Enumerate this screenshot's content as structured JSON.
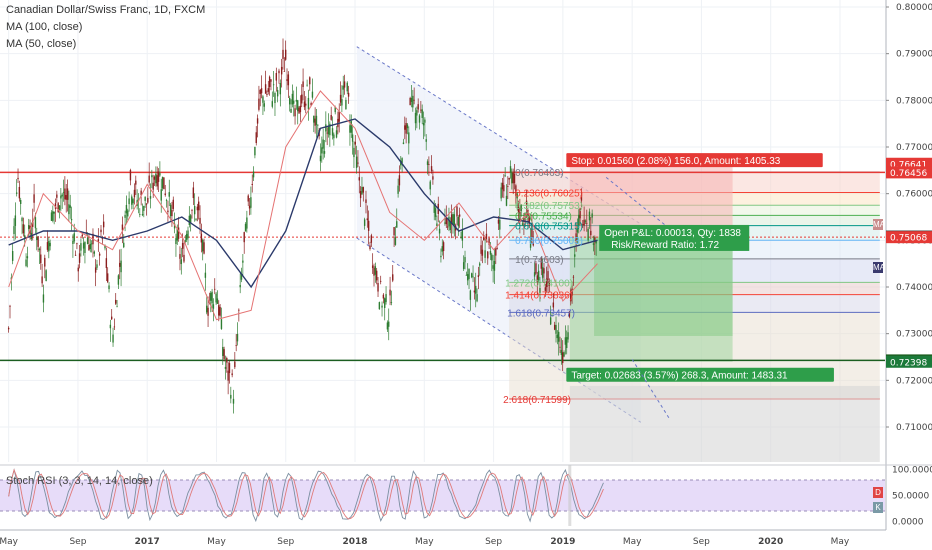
{
  "header": {
    "title": "Canadian Dollar/Swiss Franc, 1D, FXCM",
    "ma1": "MA (100, close)",
    "ma2": "MA (50, close)"
  },
  "stoch_label": "Stoch RSI (3, 3, 14, 14, close)",
  "position": {
    "stop_text": "Stop: 0.01560 (2.08%) 156.0, Amount: 1405.33",
    "target_text": "Target: 0.02683 (3.57%) 268.3, Amount: 1483.31",
    "open_pl_text": "Open P&L: 0.00013, Qty: 1838",
    "rr_text": "Risk/Reward Ratio: 1.72",
    "entry": 0.75081,
    "stop": 0.76641,
    "target": 0.72398
  },
  "price_tags": [
    {
      "text": "0.76641",
      "value": 0.76641,
      "color": "#e53935"
    },
    {
      "text": "0.76456",
      "value": 0.76456,
      "color": "#e53935"
    },
    {
      "text": "0.75081",
      "value": 0.75081,
      "color": "#333333"
    },
    {
      "text": "0.75068",
      "value": 0.75068,
      "color": "#e53935"
    },
    {
      "text": "0.72427",
      "value": 0.72427,
      "color": "#1b5e20"
    },
    {
      "text": "0.72398",
      "value": 0.72398,
      "color": "#1b7a3a"
    }
  ],
  "side_buttons": {
    "ma": "MA",
    "d": "D",
    "k": "K"
  },
  "stoch_ticks": [
    "100.0000",
    "50.0000",
    "0.0000"
  ],
  "fib_levels": [
    {
      "text": "0(0.76463)",
      "value": 0.76463,
      "color": "#787b86"
    },
    {
      "text": "0.236(0.76025)",
      "value": 0.76025,
      "color": "#f44336"
    },
    {
      "text": "0.382(0.75753)",
      "value": 0.75753,
      "color": "#81c784"
    },
    {
      "text": "0.5(0.75534)",
      "value": 0.75534,
      "color": "#4caf50"
    },
    {
      "text": "0.618(0.75315)",
      "value": 0.75315,
      "color": "#009688"
    },
    {
      "text": "0.786(0.75003)",
      "value": 0.75003,
      "color": "#64b5f6"
    },
    {
      "text": "1(0.74603)",
      "value": 0.74603,
      "color": "#787b86"
    },
    {
      "text": "1.272(0.74100)",
      "value": 0.741,
      "color": "#81c784"
    },
    {
      "text": "1.414(0.73836)",
      "value": 0.73836,
      "color": "#f44336"
    },
    {
      "text": "1.618(0.73457)",
      "value": 0.73457,
      "color": "#5c6bc0"
    },
    {
      "text": "2.618(0.71599)",
      "value": 0.71599,
      "color": "#e53935"
    }
  ],
  "chart_data": {
    "type": "candlestick",
    "title": "Canadian Dollar/Swiss Franc, 1D, FXCM",
    "y_ticks": [
      "0.80000",
      "0.79000",
      "0.78000",
      "0.77000",
      "0.76000",
      "0.75000",
      "0.74000",
      "0.73000",
      "0.72000",
      "0.71000"
    ],
    "y_tick_values": [
      0.8,
      0.79,
      0.78,
      0.77,
      0.76,
      0.75,
      0.74,
      0.73,
      0.72,
      0.71
    ],
    "ylim": [
      0.7025,
      0.8015
    ],
    "x_ticks": [
      "May",
      "Sep",
      "2017",
      "May",
      "Sep",
      "2018",
      "May",
      "Sep",
      "2019",
      "May",
      "Sep",
      "2020",
      "May"
    ],
    "x_tick_positions": [
      0.0,
      4.0,
      8.0,
      12.0,
      16.0,
      20.0,
      24.0,
      28.0,
      32.0,
      36.0,
      40.0,
      44.0,
      48.0
    ],
    "xlim": [
      -0.5,
      50.6
    ],
    "series": [
      {
        "name": "Close",
        "x": [
          0,
          0.5,
          1,
          1.5,
          2,
          2.5,
          3,
          3.5,
          4,
          4.5,
          5,
          5.5,
          6,
          6.5,
          7,
          7.5,
          8,
          8.5,
          9,
          9.5,
          10,
          10.5,
          11,
          11.5,
          12,
          12.5,
          13,
          13.5,
          14,
          14.5,
          15,
          15.5,
          16,
          16.5,
          17,
          17.5,
          18,
          18.5,
          19,
          19.5,
          20,
          20.5,
          21,
          21.5,
          22,
          22.5,
          23,
          23.5,
          24,
          24.5,
          25,
          25.5,
          26,
          26.5,
          27,
          27.5,
          28,
          28.5,
          29,
          29.5,
          30,
          30.5,
          31,
          31.5,
          32,
          32.5,
          33,
          33.5,
          34
        ],
        "values": [
          0.731,
          0.765,
          0.748,
          0.756,
          0.741,
          0.755,
          0.76,
          0.758,
          0.745,
          0.752,
          0.745,
          0.751,
          0.729,
          0.748,
          0.763,
          0.758,
          0.758,
          0.765,
          0.762,
          0.754,
          0.745,
          0.758,
          0.755,
          0.736,
          0.74,
          0.723,
          0.718,
          0.745,
          0.761,
          0.78,
          0.782,
          0.782,
          0.789,
          0.776,
          0.781,
          0.781,
          0.768,
          0.775,
          0.776,
          0.783,
          0.768,
          0.758,
          0.747,
          0.738,
          0.734,
          0.762,
          0.775,
          0.78,
          0.775,
          0.76,
          0.748,
          0.756,
          0.754,
          0.742,
          0.738,
          0.75,
          0.744,
          0.761,
          0.763,
          0.756,
          0.755,
          0.743,
          0.741,
          0.733,
          0.726,
          0.738,
          0.757,
          0.755,
          0.75
        ]
      },
      {
        "name": "MA (100, close)",
        "x": [
          0,
          2,
          4,
          6,
          8,
          10,
          12,
          14,
          16,
          18,
          20,
          22,
          24,
          26,
          28,
          30,
          32,
          34
        ],
        "values": [
          0.749,
          0.752,
          0.752,
          0.75,
          0.752,
          0.755,
          0.75,
          0.74,
          0.752,
          0.774,
          0.776,
          0.77,
          0.76,
          0.752,
          0.755,
          0.754,
          0.748,
          0.75
        ]
      },
      {
        "name": "MA (50, close)",
        "x": [
          0,
          2,
          4,
          6,
          8,
          10,
          12,
          14,
          16,
          18,
          20,
          22,
          24,
          26,
          28,
          30,
          32,
          34
        ],
        "values": [
          0.74,
          0.76,
          0.752,
          0.748,
          0.762,
          0.751,
          0.733,
          0.735,
          0.77,
          0.782,
          0.774,
          0.756,
          0.75,
          0.758,
          0.748,
          0.756,
          0.737,
          0.745
        ]
      }
    ]
  }
}
